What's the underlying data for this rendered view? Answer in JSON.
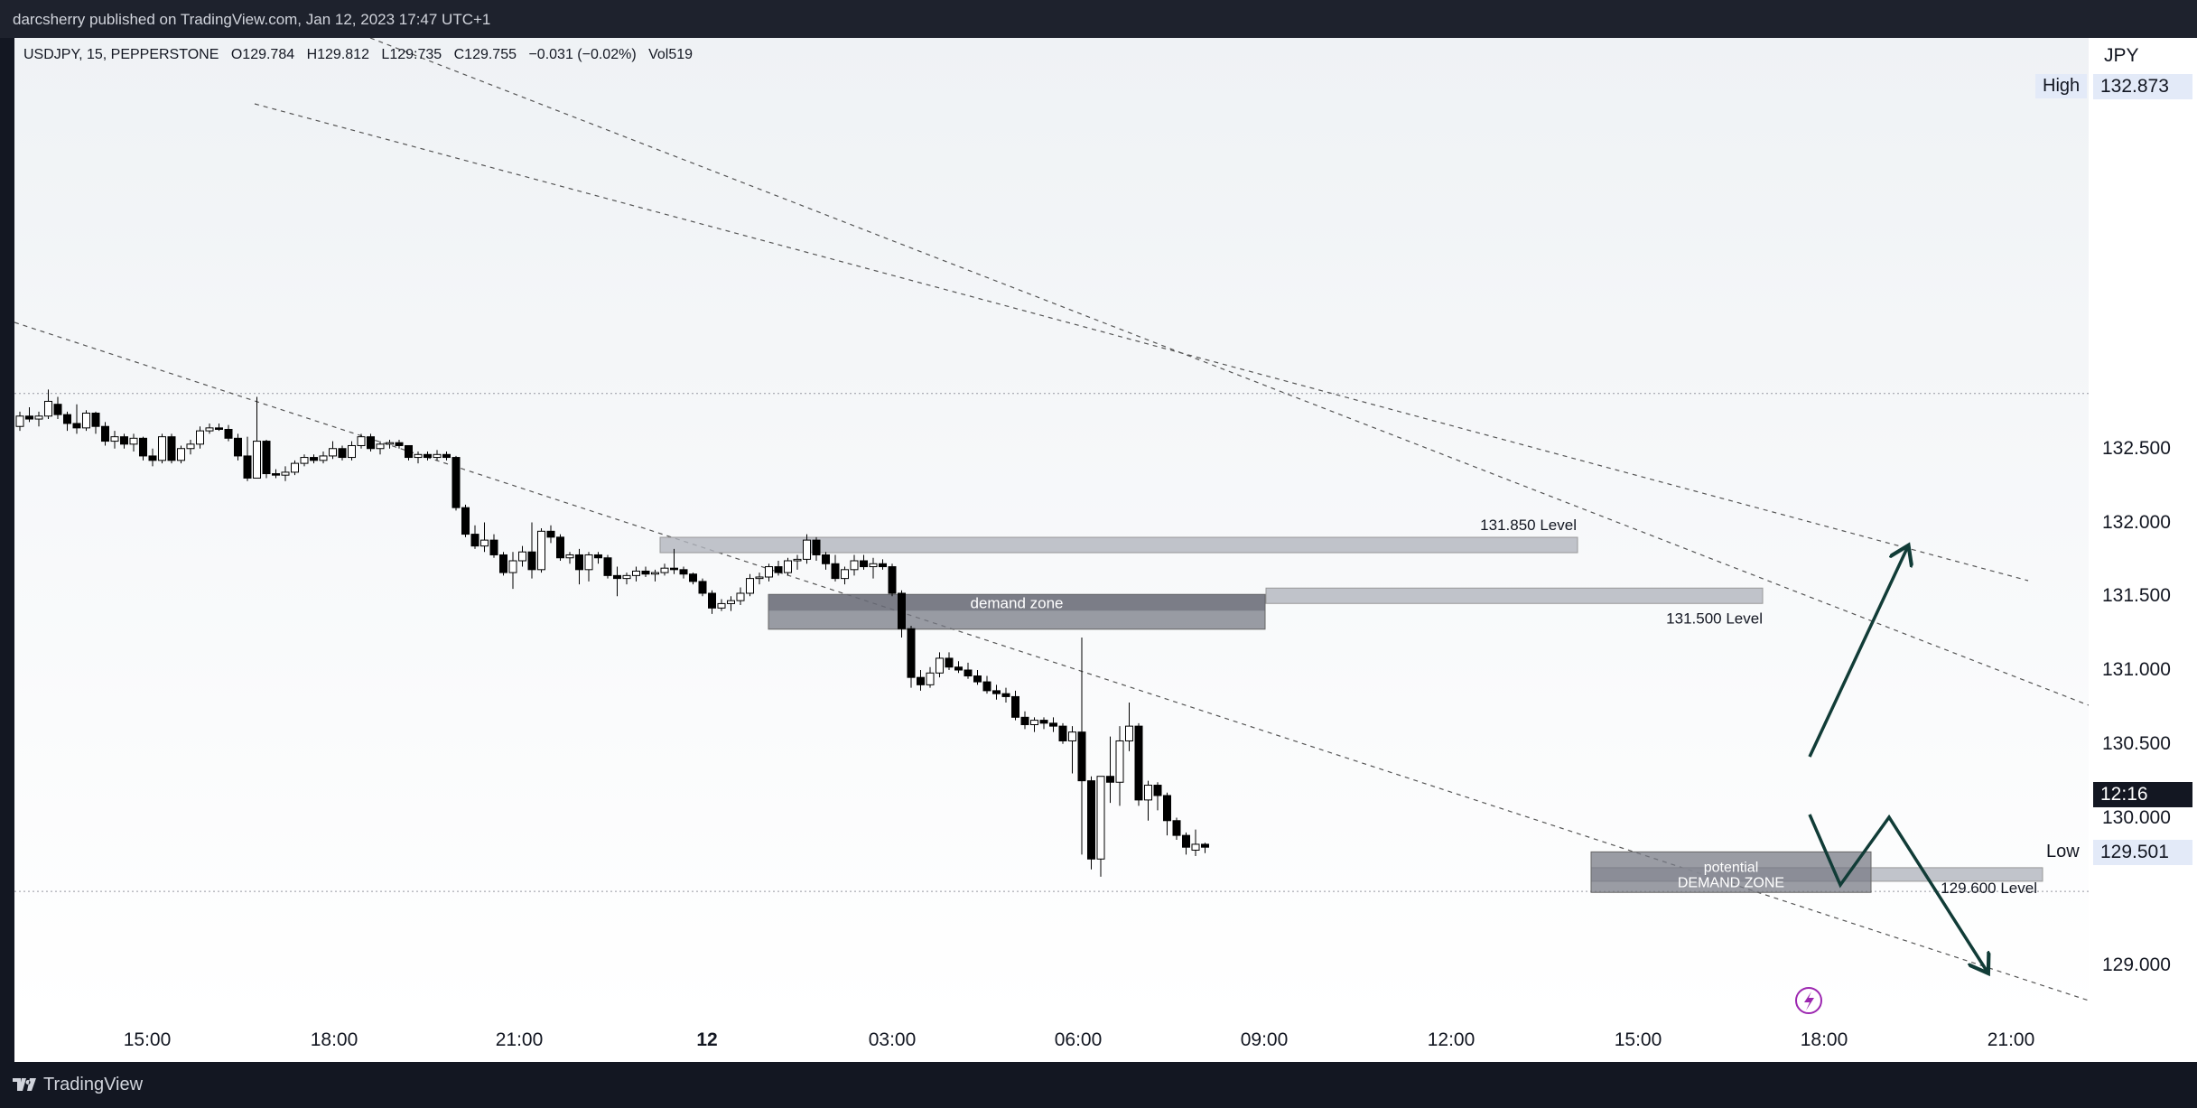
{
  "header": {
    "publisher": "darcsherry published on TradingView.com, Jan 12, 2023 17:47 UTC+1"
  },
  "legend": {
    "symbol": "USDJPY, 15, PEPPERSTONE",
    "open": "O129.784",
    "high": "H129.812",
    "low": "L129:735",
    "close": "C129.755",
    "change": "−0.031 (−0.02%)",
    "volume": "Vol519"
  },
  "axis": {
    "currency": "JPY"
  },
  "markers": {
    "high_label": "High",
    "high_value": "132.873",
    "low_label": "Low",
    "low_value": "129.501",
    "countdown": "12:16"
  },
  "annotations": {
    "level_1": "131.850 Level",
    "level_2": "131.500 Level",
    "level_3": "129.600 Level",
    "zone_1": "demand zone",
    "zone_2_line1": "potential",
    "zone_2_line2": "DEMAND ZONE"
  },
  "footer": {
    "brand": "TradingView"
  },
  "chart_data": {
    "type": "candlestick",
    "symbol": "USDJPY",
    "timeframe": "15",
    "ylim": [
      128.8,
      133.15
    ],
    "y_ticks": [
      "132.500",
      "132.000",
      "131.500",
      "131.000",
      "130.500",
      "130.000",
      "129.000"
    ],
    "x_ticks": [
      "15:00",
      "18:00",
      "21:00",
      "12",
      "03:00",
      "06:00",
      "09:00",
      "12:00",
      "15:00",
      "18:00",
      "21:00"
    ],
    "high": 132.873,
    "low": 129.501,
    "levels": [
      131.85,
      131.5,
      129.6
    ],
    "zones": [
      {
        "name": "demand zone",
        "from": 131.35,
        "to": 131.5
      },
      {
        "name": "potential DEMAND ZONE",
        "from": 129.5,
        "to": 129.75
      }
    ],
    "candles": [
      [
        132.65,
        132.75,
        132.62,
        132.72
      ],
      [
        132.72,
        132.78,
        132.68,
        132.7
      ],
      [
        132.7,
        132.75,
        132.65,
        132.72
      ],
      [
        132.72,
        132.9,
        132.7,
        132.82
      ],
      [
        132.8,
        132.85,
        132.7,
        132.73
      ],
      [
        132.73,
        132.75,
        132.62,
        132.67
      ],
      [
        132.67,
        132.8,
        132.6,
        132.64
      ],
      [
        132.64,
        132.76,
        132.62,
        132.74
      ],
      [
        132.74,
        132.75,
        132.6,
        132.65
      ],
      [
        132.65,
        132.68,
        132.52,
        132.55
      ],
      [
        132.55,
        132.62,
        132.5,
        132.58
      ],
      [
        132.58,
        132.6,
        132.5,
        132.53
      ],
      [
        132.53,
        132.6,
        132.48,
        132.57
      ],
      [
        132.57,
        132.58,
        132.42,
        132.45
      ],
      [
        132.45,
        132.5,
        132.38,
        132.42
      ],
      [
        132.42,
        132.6,
        132.4,
        132.58
      ],
      [
        132.58,
        132.6,
        132.4,
        132.42
      ],
      [
        132.42,
        132.52,
        132.4,
        132.5
      ],
      [
        132.5,
        132.56,
        132.46,
        132.53
      ],
      [
        132.53,
        132.65,
        132.5,
        132.62
      ],
      [
        132.62,
        132.67,
        132.6,
        132.64
      ],
      [
        132.64,
        132.67,
        132.62,
        132.63
      ],
      [
        132.63,
        132.66,
        132.55,
        132.57
      ],
      [
        132.57,
        132.6,
        132.42,
        132.45
      ],
      [
        132.45,
        132.58,
        132.28,
        132.3
      ],
      [
        132.3,
        132.85,
        132.3,
        132.55
      ],
      [
        132.55,
        132.56,
        132.3,
        132.33
      ],
      [
        132.33,
        132.36,
        132.3,
        132.32
      ],
      [
        132.32,
        132.38,
        132.28,
        132.34
      ],
      [
        132.34,
        132.42,
        132.32,
        132.4
      ],
      [
        132.4,
        132.46,
        132.38,
        132.44
      ],
      [
        132.44,
        132.46,
        132.4,
        132.42
      ],
      [
        132.42,
        132.48,
        132.4,
        132.45
      ],
      [
        132.45,
        132.55,
        132.43,
        132.5
      ],
      [
        132.5,
        132.52,
        132.42,
        132.44
      ],
      [
        132.44,
        132.55,
        132.42,
        132.52
      ],
      [
        132.52,
        132.6,
        132.5,
        132.58
      ],
      [
        132.58,
        132.6,
        132.48,
        132.5
      ],
      [
        132.5,
        132.55,
        132.46,
        132.53
      ],
      [
        132.53,
        132.56,
        132.5,
        132.54
      ],
      [
        132.54,
        132.56,
        132.5,
        132.52
      ],
      [
        132.52,
        132.5,
        132.42,
        132.44
      ],
      [
        132.44,
        132.48,
        132.4,
        132.46
      ],
      [
        132.46,
        132.48,
        132.42,
        132.44
      ],
      [
        132.44,
        132.49,
        132.42,
        132.46
      ],
      [
        132.46,
        132.48,
        132.42,
        132.44
      ],
      [
        132.44,
        132.45,
        132.08,
        132.1
      ],
      [
        132.1,
        132.12,
        131.9,
        131.92
      ],
      [
        131.92,
        131.98,
        131.82,
        131.84
      ],
      [
        131.84,
        132.0,
        131.8,
        131.88
      ],
      [
        131.88,
        131.92,
        131.76,
        131.78
      ],
      [
        131.78,
        131.8,
        131.64,
        131.66
      ],
      [
        131.66,
        131.8,
        131.55,
        131.74
      ],
      [
        131.74,
        131.84,
        131.7,
        131.8
      ],
      [
        131.8,
        132.0,
        131.62,
        131.68
      ],
      [
        131.68,
        131.96,
        131.66,
        131.94
      ],
      [
        131.94,
        131.98,
        131.86,
        131.9
      ],
      [
        131.9,
        131.92,
        131.74,
        131.76
      ],
      [
        131.76,
        131.8,
        131.72,
        131.78
      ],
      [
        131.78,
        131.82,
        131.58,
        131.68
      ],
      [
        131.68,
        131.8,
        131.6,
        131.78
      ],
      [
        131.78,
        131.8,
        131.72,
        131.76
      ],
      [
        131.76,
        131.78,
        131.62,
        131.64
      ],
      [
        131.64,
        131.7,
        131.5,
        131.62
      ],
      [
        131.62,
        131.66,
        131.58,
        131.64
      ],
      [
        131.64,
        131.7,
        131.6,
        131.67
      ],
      [
        131.67,
        131.7,
        131.63,
        131.65
      ],
      [
        131.65,
        131.68,
        131.6,
        131.66
      ],
      [
        131.66,
        131.72,
        131.64,
        131.69
      ],
      [
        131.69,
        131.82,
        131.65,
        131.68
      ],
      [
        131.68,
        131.7,
        131.62,
        131.65
      ],
      [
        131.65,
        131.66,
        131.58,
        131.6
      ],
      [
        131.6,
        131.62,
        131.5,
        131.52
      ],
      [
        131.52,
        131.54,
        131.38,
        131.42
      ],
      [
        131.42,
        131.48,
        131.4,
        131.45
      ],
      [
        131.45,
        131.5,
        131.4,
        131.47
      ],
      [
        131.47,
        131.56,
        131.44,
        131.52
      ],
      [
        131.52,
        131.65,
        131.5,
        131.62
      ],
      [
        131.62,
        131.66,
        131.58,
        131.63
      ],
      [
        131.63,
        131.72,
        131.6,
        131.7
      ],
      [
        131.7,
        131.74,
        131.64,
        131.66
      ],
      [
        131.66,
        131.76,
        131.64,
        131.74
      ],
      [
        131.74,
        131.78,
        131.68,
        131.75
      ],
      [
        131.75,
        131.92,
        131.72,
        131.88
      ],
      [
        131.88,
        131.9,
        131.74,
        131.78
      ],
      [
        131.78,
        131.8,
        131.68,
        131.72
      ],
      [
        131.72,
        131.78,
        131.6,
        131.62
      ],
      [
        131.62,
        131.7,
        131.58,
        131.68
      ],
      [
        131.68,
        131.78,
        131.64,
        131.74
      ],
      [
        131.74,
        131.78,
        131.68,
        131.7
      ],
      [
        131.7,
        131.76,
        131.62,
        131.72
      ],
      [
        131.72,
        131.75,
        131.68,
        131.7
      ],
      [
        131.7,
        131.72,
        131.5,
        131.52
      ],
      [
        131.52,
        131.54,
        131.22,
        131.28
      ],
      [
        131.28,
        131.3,
        130.88,
        130.95
      ],
      [
        130.95,
        131.0,
        130.86,
        130.9
      ],
      [
        130.9,
        131.02,
        130.88,
        130.98
      ],
      [
        130.98,
        131.12,
        130.95,
        131.08
      ],
      [
        131.08,
        131.12,
        131.0,
        131.02
      ],
      [
        131.02,
        131.06,
        130.98,
        131.0
      ],
      [
        131.0,
        131.05,
        130.94,
        130.96
      ],
      [
        130.96,
        131.0,
        130.9,
        130.92
      ],
      [
        130.92,
        130.96,
        130.84,
        130.86
      ],
      [
        130.86,
        130.9,
        130.8,
        130.84
      ],
      [
        130.84,
        130.88,
        130.78,
        130.82
      ],
      [
        130.82,
        130.86,
        130.66,
        130.68
      ],
      [
        130.68,
        130.72,
        130.6,
        130.63
      ],
      [
        130.63,
        130.68,
        130.58,
        130.66
      ],
      [
        130.66,
        130.68,
        130.6,
        130.64
      ],
      [
        130.64,
        130.68,
        130.58,
        130.62
      ],
      [
        130.62,
        130.64,
        130.5,
        130.52
      ],
      [
        130.52,
        130.62,
        130.3,
        130.58
      ],
      [
        130.58,
        131.22,
        129.75,
        130.25
      ],
      [
        130.25,
        130.28,
        129.65,
        129.72
      ],
      [
        129.72,
        130.25,
        129.6,
        130.28
      ],
      [
        130.28,
        130.55,
        130.1,
        130.24
      ],
      [
        130.24,
        130.62,
        130.08,
        130.52
      ],
      [
        130.52,
        130.78,
        130.45,
        130.62
      ],
      [
        130.62,
        130.64,
        130.08,
        130.12
      ],
      [
        130.12,
        130.25,
        129.98,
        130.22
      ],
      [
        130.22,
        130.24,
        130.05,
        130.15
      ],
      [
        130.15,
        130.17,
        129.88,
        129.98
      ],
      [
        129.98,
        130.0,
        129.85,
        129.88
      ],
      [
        129.88,
        129.9,
        129.75,
        129.8
      ],
      [
        129.78,
        129.92,
        129.74,
        129.82
      ],
      [
        129.82,
        129.83,
        129.76,
        129.8
      ]
    ]
  }
}
